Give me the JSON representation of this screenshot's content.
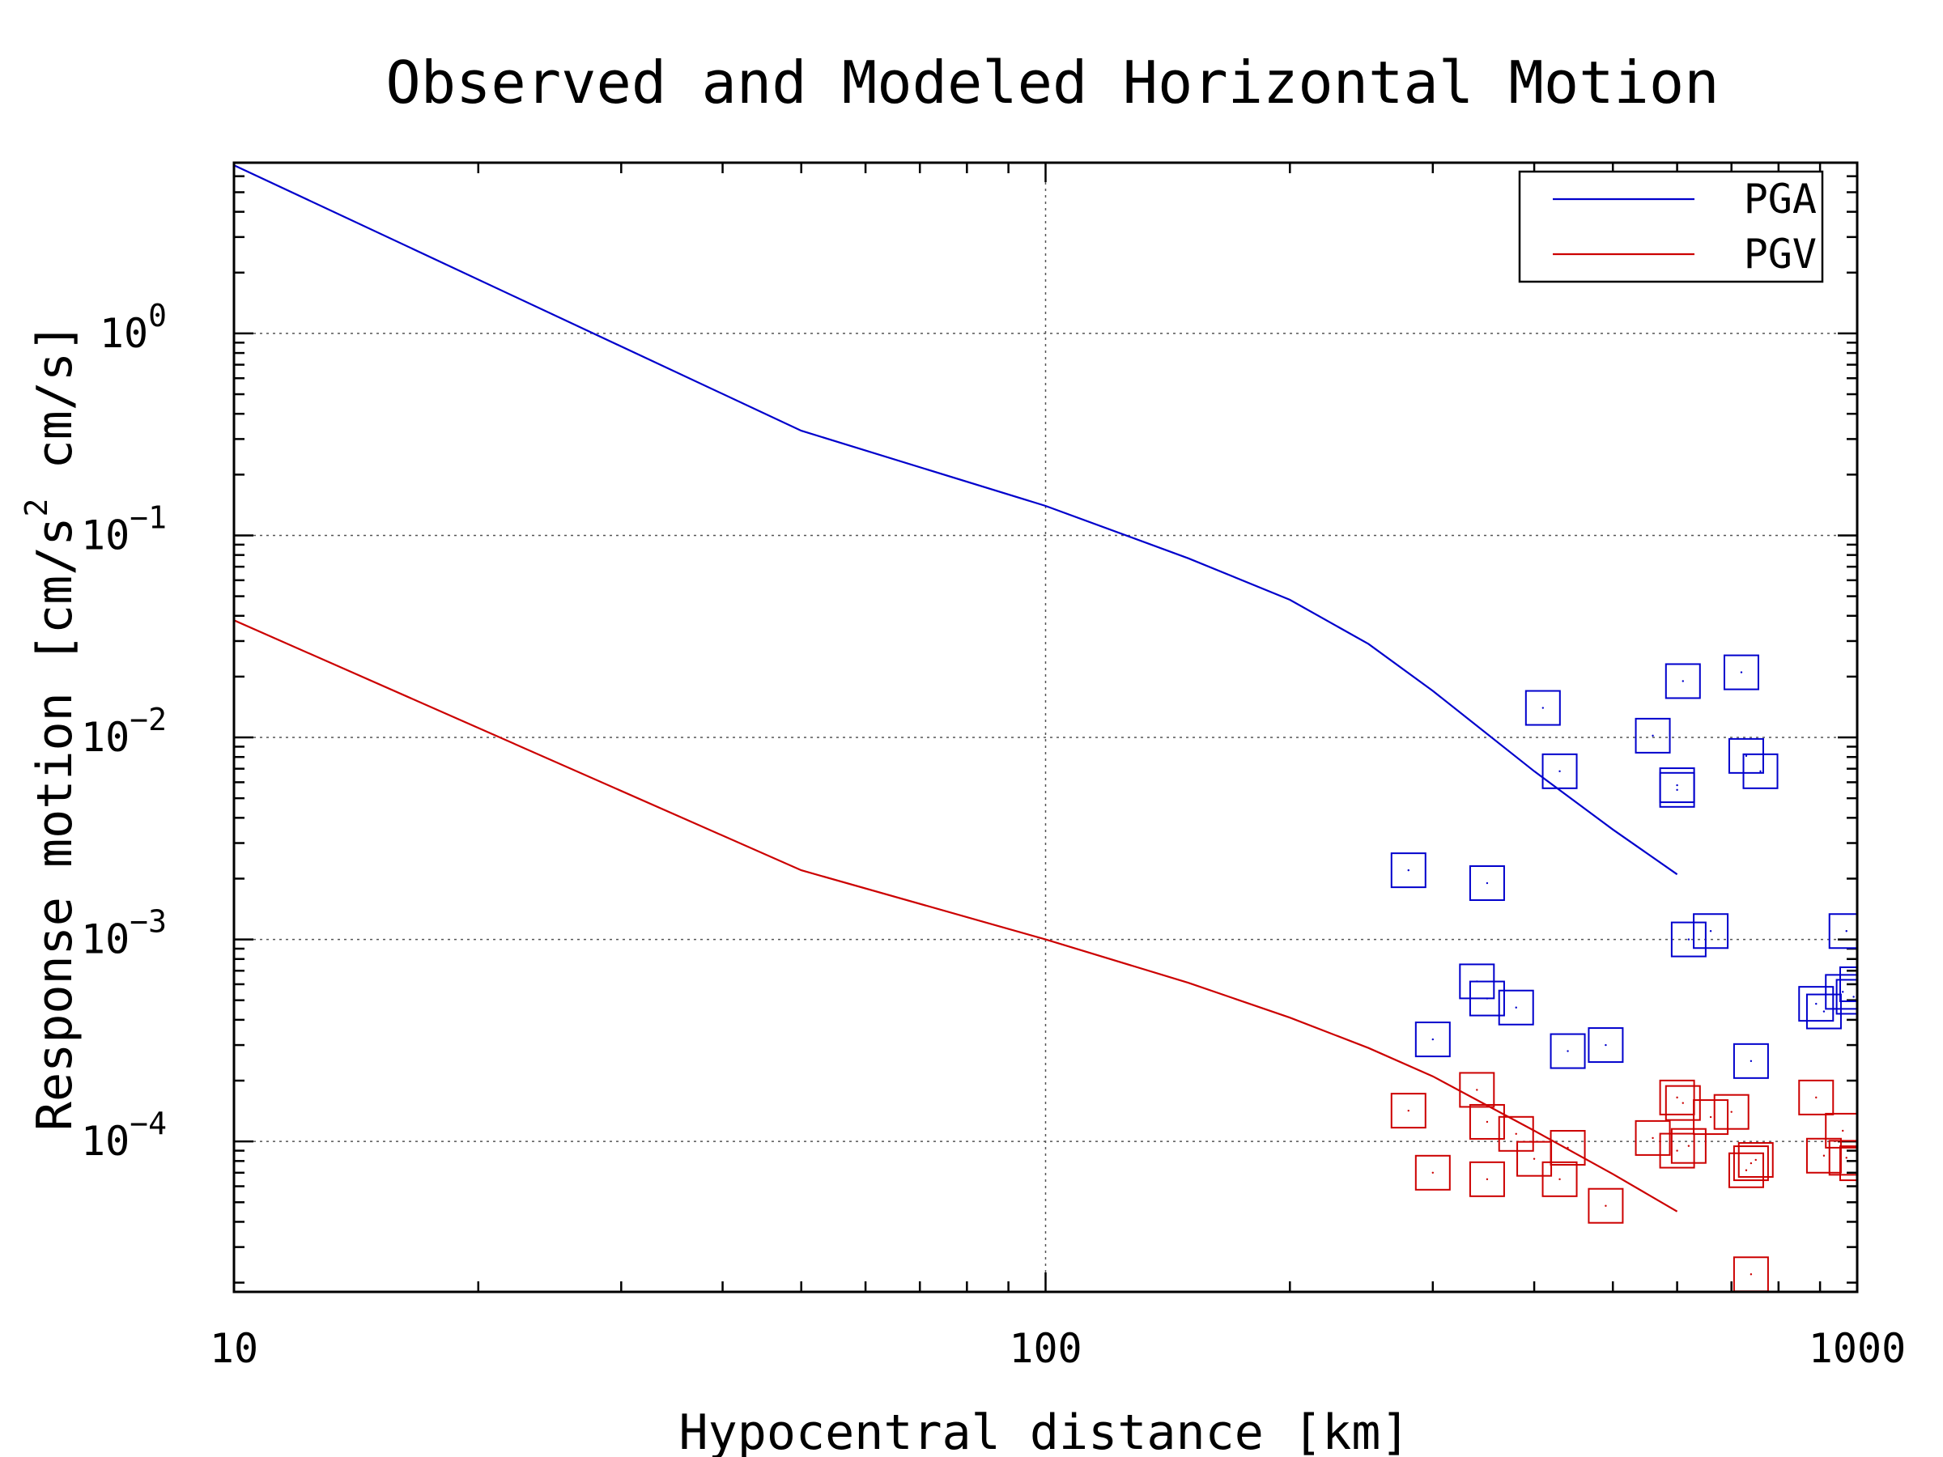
{
  "chart_data": {
    "type": "scatter",
    "title": "Observed and Modeled Horizontal Motion",
    "xlabel": "Hypocentral distance [km]",
    "ylabel": {
      "main": "Response motion [cm/s",
      "sup": "2",
      "tail": " cm/s]"
    },
    "x_scale": "log",
    "y_scale": "log",
    "xlim": [
      10,
      1000
    ],
    "ylim": [
      1.8e-05,
      7
    ],
    "grid": true,
    "legend_position": "top-right",
    "x_ticks": [
      {
        "value": 10,
        "label": "10"
      },
      {
        "value": 100,
        "label": "100"
      },
      {
        "value": 1000,
        "label": "1000"
      }
    ],
    "y_ticks": [
      {
        "value": 1,
        "base": "10",
        "exp": "0"
      },
      {
        "value": 0.1,
        "base": "10",
        "exp": "−1"
      },
      {
        "value": 0.01,
        "base": "10",
        "exp": "−2"
      },
      {
        "value": 0.001,
        "base": "10",
        "exp": "−3"
      },
      {
        "value": 0.0001,
        "base": "10",
        "exp": "−4"
      }
    ],
    "series": [
      {
        "name": "PGA",
        "kind": "line",
        "color": "#0000cc",
        "x": [
          10,
          50,
          100,
          150,
          200,
          250,
          300,
          400,
          500,
          600
        ],
        "y": [
          6.8,
          0.33,
          0.14,
          0.077,
          0.048,
          0.029,
          0.017,
          0.0068,
          0.0035,
          0.0021
        ]
      },
      {
        "name": "PGV",
        "kind": "line",
        "color": "#cc0000",
        "x": [
          10,
          50,
          100,
          150,
          200,
          250,
          300,
          400,
          500,
          600
        ],
        "y": [
          0.038,
          0.0022,
          0.001,
          0.00061,
          0.00041,
          0.00029,
          0.00021,
          0.000113,
          6.9e-05,
          4.5e-05
        ]
      },
      {
        "kind": "markers",
        "color": "#0000cc",
        "x": [
          280,
          300,
          340,
          350,
          350,
          380,
          410,
          430,
          440,
          490,
          560,
          600,
          600,
          610,
          620,
          660,
          720,
          730,
          740,
          760,
          890,
          910,
          960,
          970,
          990,
          1000
        ],
        "y": [
          0.0022,
          0.00032,
          0.00062,
          0.0019,
          0.00051,
          0.00046,
          0.014,
          0.0068,
          0.00028,
          0.0003,
          0.0102,
          0.0058,
          0.0055,
          0.019,
          0.001,
          0.0011,
          0.021,
          0.0081,
          0.00025,
          0.0068,
          0.00048,
          0.00044,
          0.00055,
          0.0011,
          0.00052,
          0.0006
        ]
      },
      {
        "kind": "markers",
        "color": "#cc0000",
        "x": [
          280,
          300,
          340,
          350,
          350,
          380,
          400,
          430,
          440,
          490,
          560,
          600,
          600,
          610,
          620,
          660,
          700,
          730,
          740,
          740,
          750,
          890,
          910,
          960,
          970,
          1000
        ],
        "y": [
          0.000142,
          7e-05,
          0.00018,
          0.000125,
          6.5e-05,
          0.000109,
          8.2e-05,
          6.5e-05,
          9.3e-05,
          4.8e-05,
          0.000104,
          0.000165,
          9e-05,
          0.000155,
          9.5e-05,
          0.000132,
          0.00014,
          7.2e-05,
          2.2e-05,
          7.8e-05,
          8.1e-05,
          0.000165,
          8.5e-05,
          0.000113,
          8.3e-05,
          7.8e-05
        ]
      }
    ]
  }
}
